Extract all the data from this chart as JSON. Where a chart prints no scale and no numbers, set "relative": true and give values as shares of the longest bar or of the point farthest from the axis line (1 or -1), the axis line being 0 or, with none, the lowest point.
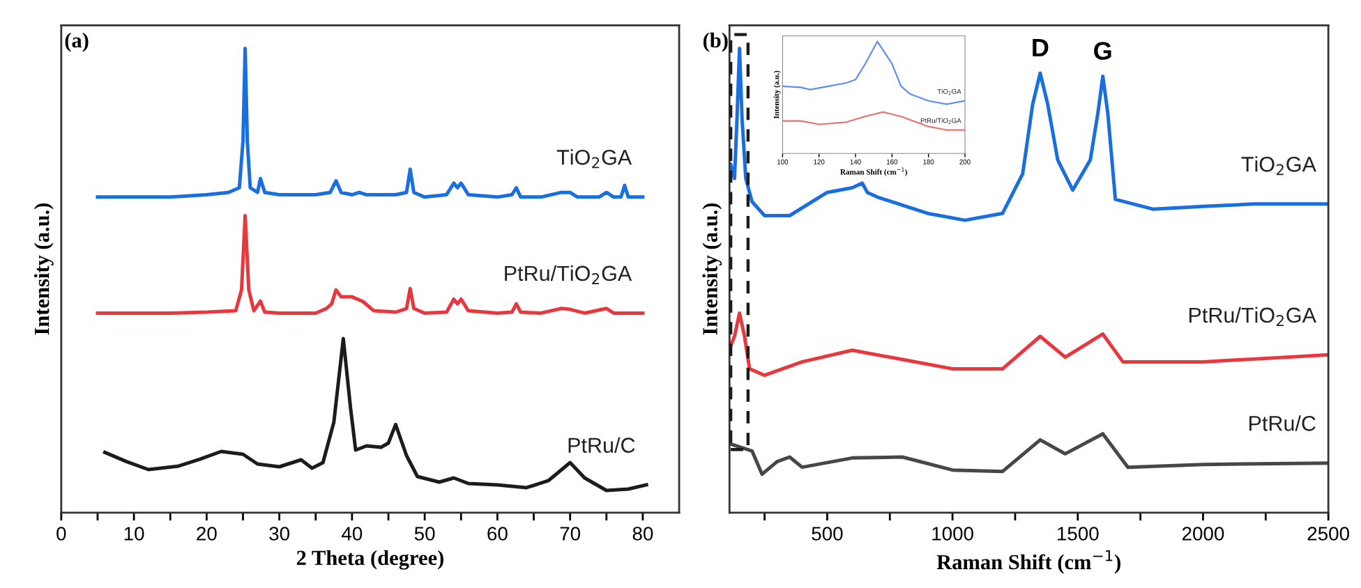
{
  "chart_data": [
    {
      "type": "line",
      "relative": true,
      "xlabel": "2 Theta (degree)",
      "ylabel": "Intensity (a.u.)",
      "xlim": [
        0,
        85
      ],
      "xticks": [
        0,
        {
          "value": 5,
          "label": null
        },
        10,
        {
          "value": 15,
          "label": null
        },
        20,
        {
          "value": 25,
          "label": null
        },
        30,
        {
          "value": 35,
          "label": null
        },
        40,
        {
          "value": 45,
          "label": null
        },
        50,
        {
          "value": 55,
          "label": null
        },
        60,
        {
          "value": 65,
          "label": null
        },
        70,
        {
          "value": 75,
          "label": null
        },
        80
      ],
      "legend": false,
      "grid": false,
      "annotations": [
        "(a)"
      ],
      "series": [
        {
          "name": "TiO$_{2}$GA",
          "color": "#1a6fe0",
          "x": [
            5,
            10,
            15,
            20,
            23,
            24.5,
            25,
            25.3,
            25.6,
            26,
            27,
            27.4,
            28,
            30,
            35,
            37,
            37.8,
            38.5,
            40,
            41,
            42,
            46,
            47.5,
            48,
            48.5,
            50,
            53,
            54,
            54.5,
            55,
            56,
            60,
            62,
            62.6,
            63.2,
            66,
            68.8,
            70,
            71,
            74,
            75,
            76,
            77,
            77.5,
            78,
            80
          ],
          "values": [
            0.68,
            0.68,
            0.68,
            0.685,
            0.69,
            0.7,
            0.8,
            1.0,
            0.8,
            0.7,
            0.69,
            0.72,
            0.69,
            0.685,
            0.685,
            0.69,
            0.715,
            0.69,
            0.685,
            0.69,
            0.685,
            0.685,
            0.69,
            0.74,
            0.69,
            0.68,
            0.685,
            0.71,
            0.7,
            0.71,
            0.685,
            0.68,
            0.685,
            0.7,
            0.68,
            0.68,
            0.69,
            0.69,
            0.68,
            0.68,
            0.69,
            0.68,
            0.68,
            0.705,
            0.68,
            0.68
          ]
        },
        {
          "name": "PtRu/TiO$_{2}$GA",
          "color": "#e8383d",
          "x": [
            5,
            10,
            15,
            20,
            24,
            24.8,
            25.3,
            25.8,
            26.5,
            27.4,
            28,
            30,
            35,
            36.5,
            37.2,
            37.8,
            38.5,
            40,
            41.5,
            43,
            46,
            47.5,
            48,
            48.5,
            50,
            53,
            54,
            54.5,
            55,
            56,
            60,
            62,
            62.6,
            63.2,
            66,
            68.8,
            70,
            72,
            75,
            76,
            80
          ],
          "values": [
            0.43,
            0.43,
            0.43,
            0.432,
            0.435,
            0.48,
            0.64,
            0.48,
            0.435,
            0.456,
            0.432,
            0.43,
            0.43,
            0.44,
            0.45,
            0.48,
            0.465,
            0.465,
            0.455,
            0.435,
            0.432,
            0.44,
            0.483,
            0.44,
            0.43,
            0.432,
            0.46,
            0.45,
            0.46,
            0.435,
            0.43,
            0.432,
            0.45,
            0.432,
            0.43,
            0.44,
            0.438,
            0.43,
            0.44,
            0.43,
            0.43
          ]
        },
        {
          "name": "PtRu/C",
          "color": "#1c1c1c",
          "x": [
            6,
            9,
            12,
            16,
            19,
            22,
            25,
            27,
            30,
            33,
            34.5,
            36,
            37.5,
            38.8,
            39.8,
            40.5,
            42,
            44,
            45,
            46,
            47.5,
            49,
            52,
            54,
            56,
            60,
            64,
            67,
            70,
            72,
            75,
            78,
            80.5
          ],
          "values": [
            0.13,
            0.11,
            0.093,
            0.1,
            0.115,
            0.132,
            0.126,
            0.105,
            0.099,
            0.114,
            0.096,
            0.108,
            0.195,
            0.375,
            0.225,
            0.135,
            0.144,
            0.141,
            0.15,
            0.19,
            0.123,
            0.078,
            0.066,
            0.075,
            0.063,
            0.06,
            0.054,
            0.069,
            0.108,
            0.075,
            0.048,
            0.051,
            0.06
          ]
        }
      ]
    },
    {
      "type": "line",
      "relative": true,
      "xlabel": "Raman Shift (cm$^{−1}$)",
      "ylabel": "Intensity (a.u.)",
      "xlim": [
        110,
        2500
      ],
      "xticks": [
        {
          "value": 250,
          "label": null
        },
        500,
        {
          "value": 750,
          "label": null
        },
        1000,
        {
          "value": 1250,
          "label": null
        },
        1500,
        {
          "value": 1750,
          "label": null
        },
        2000,
        {
          "value": 2250,
          "label": null
        },
        2500
      ],
      "legend": false,
      "grid": false,
      "annotations": [
        "(b)",
        {
          "text": "D",
          "x": 1350,
          "y": 0.947
        },
        {
          "text": "G",
          "x": 1600,
          "y": 0.94
        }
      ],
      "series": [
        {
          "name": "TiO$_{2}$GA",
          "color": "#1a6fe0",
          "x": [
            115,
            130,
            140,
            150,
            160,
            175,
            200,
            250,
            350,
            500,
            600,
            640,
            660,
            700,
            900,
            1050,
            1200,
            1280,
            1320,
            1350,
            1380,
            1420,
            1480,
            1550,
            1580,
            1600,
            1620,
            1650,
            1800,
            2000,
            2200,
            2500
          ],
          "values": [
            0.75,
            0.72,
            0.85,
            1.0,
            0.85,
            0.72,
            0.67,
            0.64,
            0.64,
            0.69,
            0.7,
            0.71,
            0.69,
            0.68,
            0.645,
            0.63,
            0.645,
            0.73,
            0.88,
            0.947,
            0.88,
            0.76,
            0.695,
            0.76,
            0.86,
            0.94,
            0.86,
            0.675,
            0.654,
            0.66,
            0.665,
            0.665
          ]
        },
        {
          "name": "PtRu/TiO$_{2}$GA",
          "color": "#e8383d",
          "x": [
            115,
            130,
            150,
            170,
            190,
            250,
            400,
            600,
            800,
            1000,
            1200,
            1350,
            1450,
            1600,
            1680,
            2000,
            2500
          ],
          "values": [
            0.36,
            0.38,
            0.43,
            0.38,
            0.31,
            0.296,
            0.325,
            0.35,
            0.33,
            0.31,
            0.31,
            0.38,
            0.335,
            0.385,
            0.325,
            0.325,
            0.34
          ]
        },
        {
          "name": "PtRu/C",
          "color": "#474747",
          "x": [
            115,
            200,
            240,
            300,
            350,
            400,
            600,
            800,
            1000,
            1200,
            1350,
            1450,
            1600,
            1700,
            2000,
            2500
          ],
          "values": [
            0.148,
            0.133,
            0.083,
            0.11,
            0.12,
            0.098,
            0.118,
            0.12,
            0.092,
            0.089,
            0.157,
            0.127,
            0.17,
            0.098,
            0.104,
            0.107
          ]
        }
      ]
    },
    {
      "type": "line",
      "relative": true,
      "xlabel": "Raman Shift (cm$^{−1}$)",
      "ylabel": "Intensity (a.u.)",
      "xlim": [
        100,
        200
      ],
      "xticks": [
        100,
        120,
        140,
        160,
        180,
        200
      ],
      "legend": false,
      "grid": false,
      "series": [
        {
          "name": "TiO$_{2}$GA",
          "color": "#5b8ff0",
          "x": [
            100,
            110,
            115,
            125,
            135,
            140,
            145,
            152,
            160,
            165,
            170,
            180,
            190,
            200
          ],
          "values": [
            0.6,
            0.59,
            0.57,
            0.6,
            0.63,
            0.66,
            0.79,
            1.0,
            0.8,
            0.6,
            0.53,
            0.47,
            0.44,
            0.47
          ]
        },
        {
          "name": "PtRu/TiO$_{2}$GA",
          "color": "#f07070",
          "x": [
            100,
            110,
            120,
            135,
            145,
            155,
            165,
            180,
            190,
            200
          ],
          "values": [
            0.29,
            0.29,
            0.26,
            0.28,
            0.33,
            0.37,
            0.33,
            0.24,
            0.21,
            0.21
          ]
        }
      ]
    }
  ]
}
